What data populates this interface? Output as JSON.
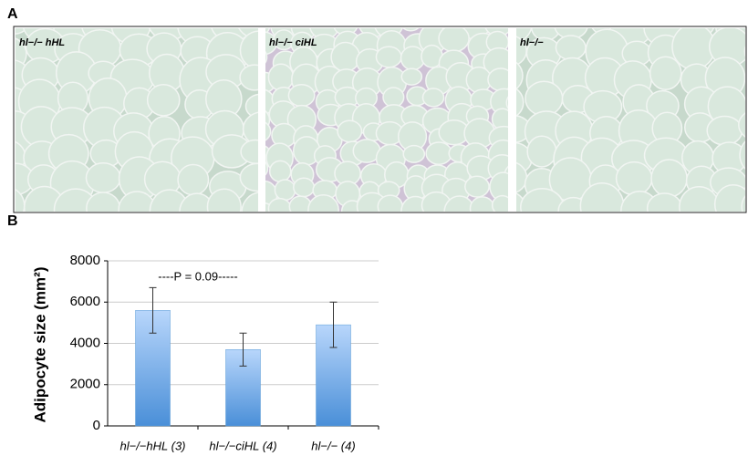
{
  "panel_a": {
    "label": "A",
    "images": [
      {
        "label": "hl−/− hHL"
      },
      {
        "label": "hl−/− ciHL"
      },
      {
        "label": "hl−/−"
      }
    ]
  },
  "chart_data": {
    "type": "bar",
    "panel_label": "B",
    "ylabel": "Adipocyte size (mm²)",
    "annotation": "----P = 0.09-----",
    "categories": [
      "hl−/−hHL (3)",
      "hl−/−ciHL (4)",
      "hl−/− (4)"
    ],
    "values": [
      5600,
      3700,
      4900
    ],
    "errors": [
      1100,
      800,
      1100
    ],
    "color": "#5b9bd5",
    "ylim": [
      0,
      8000
    ],
    "yticks": [
      0,
      2000,
      4000,
      6000,
      8000
    ],
    "grid": true
  }
}
